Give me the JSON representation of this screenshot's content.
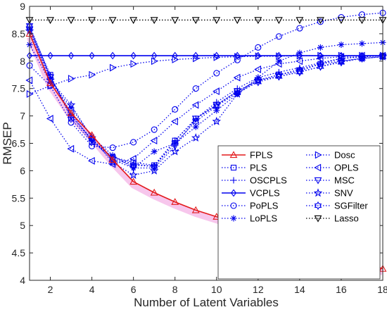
{
  "chart_data": {
    "type": "line",
    "xlabel": "Number of Latent Variables",
    "ylabel": "RMSEP",
    "xlim": [
      1,
      18
    ],
    "ylim": [
      4,
      9
    ],
    "xticks": [
      2,
      4,
      6,
      8,
      10,
      12,
      14,
      16,
      18
    ],
    "yticks": [
      4,
      4.5,
      5,
      5.5,
      6,
      6.5,
      7,
      7.5,
      8,
      8.5,
      9
    ],
    "xtick_labels": [
      "2",
      "4",
      "6",
      "8",
      "10",
      "12",
      "14",
      "16",
      "18"
    ],
    "ytick_labels": [
      "4",
      "4.5",
      "5",
      "5.5",
      "6",
      "6.5",
      "7",
      "7.5",
      "8",
      "8.5",
      "9"
    ],
    "legend_position": "center-right",
    "grid": false,
    "x": [
      1,
      2,
      3,
      4,
      5,
      6,
      7,
      8,
      9,
      10,
      11,
      12,
      13,
      14,
      15,
      16,
      17,
      18
    ],
    "series": [
      {
        "name": "FPLS",
        "color": "#e31a1c",
        "marker": "triangle-up",
        "style": "solid",
        "values": [
          8.5,
          7.6,
          7.05,
          6.65,
          6.2,
          5.8,
          5.6,
          5.43,
          5.28,
          5.16,
          5.04,
          4.92,
          4.81,
          4.7,
          4.58,
          4.46,
          4.34,
          4.21
        ]
      },
      {
        "name": "PLS",
        "color": "#0000ee",
        "marker": "square",
        "style": "dotted",
        "values": [
          8.62,
          7.75,
          6.95,
          6.52,
          6.25,
          6.15,
          6.1,
          6.55,
          6.95,
          7.2,
          7.45,
          7.65,
          7.75,
          7.82,
          7.95,
          8.05,
          8.08,
          8.1
        ]
      },
      {
        "name": "OSCPLS",
        "color": "#0000ee",
        "marker": "plus",
        "style": "dotted",
        "values": [
          8.6,
          7.7,
          7.0,
          6.55,
          6.25,
          6.12,
          6.08,
          6.55,
          6.95,
          7.25,
          7.5,
          7.7,
          7.8,
          7.88,
          7.97,
          8.05,
          8.08,
          8.1
        ]
      },
      {
        "name": "VCPLS",
        "color": "#0000ee",
        "marker": "diamond",
        "style": "solid",
        "values": [
          8.1,
          8.1,
          8.1,
          8.1,
          8.1,
          8.1,
          8.1,
          8.1,
          8.1,
          8.1,
          8.1,
          8.1,
          8.1,
          8.1,
          8.1,
          8.1,
          8.1,
          8.1
        ]
      },
      {
        "name": "PoPLS",
        "color": "#0000ee",
        "marker": "circle",
        "style": "dotted",
        "values": [
          7.92,
          7.55,
          6.88,
          6.45,
          6.42,
          6.52,
          6.75,
          7.12,
          7.5,
          7.78,
          8.02,
          8.25,
          8.45,
          8.6,
          8.72,
          8.8,
          8.85,
          8.88
        ]
      },
      {
        "name": "LoPLS",
        "color": "#0000ee",
        "marker": "asterisk",
        "style": "dotted",
        "values": [
          8.3,
          7.62,
          7.15,
          6.62,
          6.28,
          6.05,
          6.35,
          6.5,
          6.8,
          7.1,
          7.4,
          7.7,
          8.0,
          8.15,
          8.25,
          8.3,
          8.32,
          8.34
        ]
      },
      {
        "name": "Dosc",
        "color": "#0000ee",
        "marker": "triangle-right",
        "style": "dotted",
        "values": [
          7.4,
          7.55,
          7.68,
          7.75,
          7.88,
          7.95,
          8.0,
          8.03,
          8.05,
          8.07,
          8.08,
          8.09,
          8.09,
          8.1,
          8.1,
          8.1,
          8.1,
          8.1
        ]
      },
      {
        "name": "OPLS",
        "color": "#0000ee",
        "marker": "triangle-left",
        "style": "dotted",
        "values": [
          7.65,
          6.95,
          6.4,
          6.18,
          6.12,
          6.22,
          6.55,
          6.9,
          7.2,
          7.45,
          7.7,
          7.85,
          7.95,
          8.0,
          8.05,
          8.08,
          8.1,
          8.1
        ]
      },
      {
        "name": "MSC",
        "color": "#0000ee",
        "marker": "triangle-down",
        "style": "dotted",
        "values": [
          8.58,
          7.7,
          7.05,
          6.55,
          6.2,
          6.05,
          6.05,
          6.45,
          6.95,
          7.2,
          7.45,
          7.65,
          7.72,
          7.8,
          7.9,
          8.0,
          8.05,
          8.08
        ]
      },
      {
        "name": "SNV",
        "color": "#0000ee",
        "marker": "pentagram",
        "style": "dotted",
        "values": [
          8.55,
          7.65,
          7.2,
          6.6,
          6.15,
          5.92,
          6.0,
          6.35,
          6.6,
          6.9,
          7.4,
          7.65,
          7.75,
          7.85,
          7.95,
          8.0,
          8.05,
          8.08
        ]
      },
      {
        "name": "SGFilter",
        "color": "#0000ee",
        "marker": "hexagram",
        "style": "dotted",
        "values": [
          8.65,
          7.72,
          7.0,
          6.58,
          6.22,
          6.1,
          6.08,
          6.5,
          6.9,
          7.18,
          7.42,
          7.62,
          7.72,
          7.8,
          7.9,
          7.98,
          8.05,
          8.08
        ]
      },
      {
        "name": "Lasso",
        "color": "#000000",
        "marker": "triangle-down",
        "style": "dotted",
        "values": [
          8.75,
          8.75,
          8.75,
          8.75,
          8.75,
          8.75,
          8.75,
          8.75,
          8.75,
          8.75,
          8.75,
          8.75,
          8.75,
          8.75,
          8.75,
          8.75,
          8.75,
          8.75
        ]
      }
    ]
  }
}
